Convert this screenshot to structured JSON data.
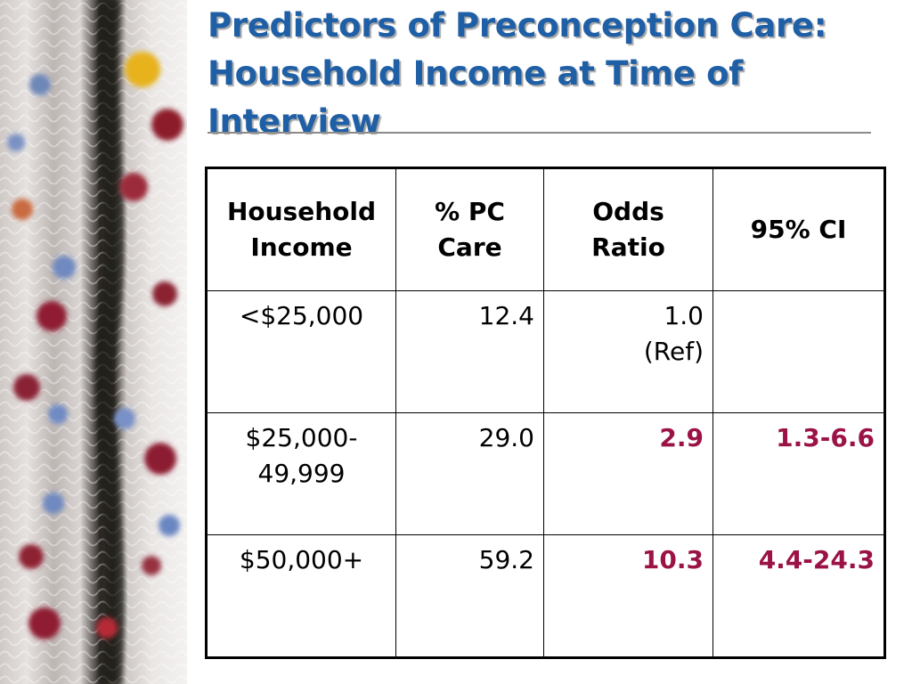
{
  "title": "Predictors of Preconception Care: Household Income at Time of Interview",
  "table": {
    "headers": [
      "Household Income",
      "% PC Care",
      "Odds Ratio",
      "95% CI"
    ],
    "rows": [
      {
        "income": "<$25,000",
        "pc_care": "12.4",
        "odds_ratio": "1.0\n(Ref)",
        "ci": "",
        "significant": false
      },
      {
        "income": "$25,000-\n49,999",
        "pc_care": "29.0",
        "odds_ratio": "2.9",
        "ci": "1.3-6.6",
        "significant": true
      },
      {
        "income": "$50,000+",
        "pc_care": "59.2",
        "odds_ratio": "10.3",
        "ci": "4.4-24.3",
        "significant": true
      }
    ]
  },
  "colors": {
    "title": "#1f5fa6",
    "significant": "#9b1346"
  }
}
